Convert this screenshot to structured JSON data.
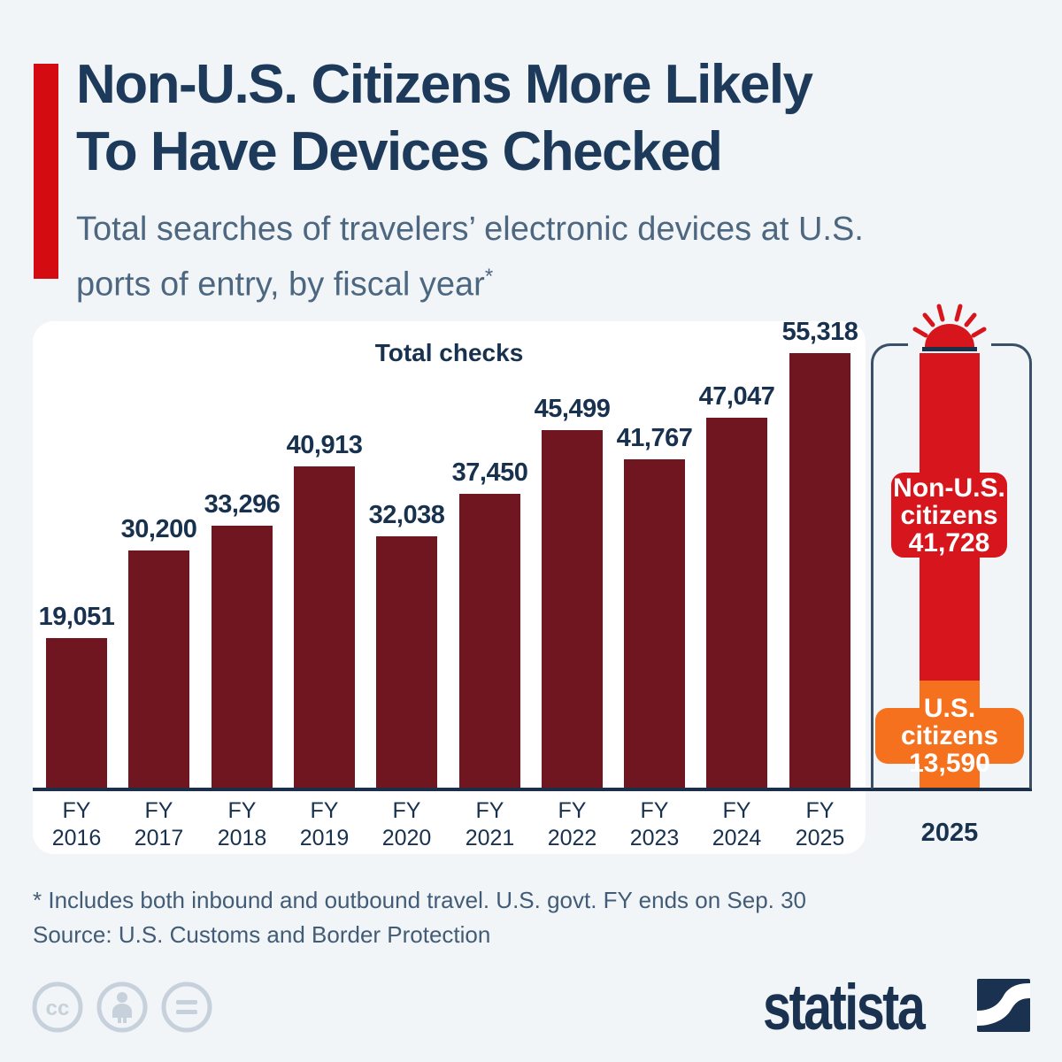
{
  "page": {
    "background": "#f1f5f8",
    "accent_color": "#d40b11"
  },
  "header": {
    "title_line1": "Non-U.S. Citizens More Likely",
    "title_line2": "To Have Devices Checked",
    "subtitle_line1": "Total searches of travelers’ electronic devices at U.S.",
    "subtitle_line2": "ports of entry, by fiscal year",
    "subtitle_footnote_marker": "*"
  },
  "chart_data": {
    "type": "bar",
    "title": "Total checks",
    "categories": [
      "FY 2016",
      "FY 2017",
      "FY 2018",
      "FY 2019",
      "FY 2020",
      "FY 2021",
      "FY 2022",
      "FY 2023",
      "FY 2024",
      "FY 2025"
    ],
    "values": [
      19051,
      30200,
      33296,
      40913,
      32038,
      37450,
      45499,
      41767,
      47047,
      55318
    ],
    "value_labels": [
      "19,051",
      "30,200",
      "33,296",
      "40,913",
      "32,038",
      "37,450",
      "45,499",
      "41,767",
      "47,047",
      "55,318"
    ],
    "ylim": [
      0,
      55318
    ],
    "grid": false,
    "legend_position": "none",
    "bar_color": "#6f1621",
    "breakdown_2025": {
      "year_label": "2025",
      "icon": "siren-icon",
      "segments": [
        {
          "name": "Non-U.S. citizens",
          "value": 41728,
          "value_label": "41,728",
          "color": "#d7151c",
          "label_line1": "Non-U.S.",
          "label_line2": "citizens"
        },
        {
          "name": "U.S. citizens",
          "value": 13590,
          "value_label": "13,590",
          "color": "#f5711d",
          "label_line1": "U.S. citizens"
        }
      ]
    }
  },
  "footer": {
    "footnote": "* Includes both inbound and outbound travel. U.S. govt. FY ends on Sep. 30",
    "source": "Source: U.S. Customs and Border Protection",
    "brand": "statista"
  }
}
